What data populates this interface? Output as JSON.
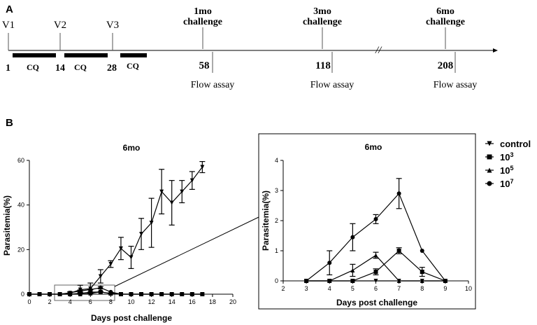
{
  "panels": {
    "a": "A",
    "b": "B"
  },
  "timeline": {
    "vaccinations": [
      "V1",
      "V2",
      "V3"
    ],
    "days": [
      "1",
      "14",
      "28"
    ],
    "cq": [
      "CQ",
      "CQ",
      "CQ"
    ],
    "challenges": [
      {
        "label_top": "1mo",
        "label_bottom": "challenge",
        "day": "58",
        "assay": "Flow assay"
      },
      {
        "label_top": "3mo",
        "label_bottom": "challenge",
        "day": "118",
        "assay": "Flow assay"
      },
      {
        "label_top": "6mo",
        "label_bottom": "challenge",
        "day": "208",
        "assay": "Flow assay"
      }
    ],
    "break_mark": "//"
  },
  "chart_data": [
    {
      "type": "line",
      "title": "6mo",
      "xlabel": "Days post challenge",
      "ylabel": "Parasitemia(%)",
      "xlim": [
        0,
        20
      ],
      "ylim": [
        0,
        60
      ],
      "xticks": [
        "0",
        "2",
        "4",
        "6",
        "8",
        "10",
        "12",
        "14",
        "16",
        "18",
        "20"
      ],
      "yticks": [
        "0",
        "20",
        "40",
        "60"
      ],
      "series": [
        {
          "name": "control",
          "marker": "triangle-down",
          "x": [
            3,
            4,
            5,
            6,
            7,
            8,
            9,
            10,
            11,
            12,
            13,
            14,
            15,
            16,
            17
          ],
          "y": [
            0,
            0.5,
            2,
            2.5,
            8,
            13.5,
            20.5,
            16.5,
            27,
            32,
            46,
            41,
            46,
            51,
            57
          ],
          "err": [
            0,
            0.5,
            2,
            2.5,
            3,
            1.5,
            5,
            5,
            7,
            11,
            10,
            10,
            5,
            4,
            2.5
          ]
        },
        {
          "name": "10^3",
          "marker": "square",
          "x": [
            0,
            1,
            2,
            3,
            4,
            5,
            6,
            7,
            8,
            9,
            10,
            11,
            12,
            13,
            14,
            15,
            16,
            17
          ],
          "y": [
            0,
            0,
            0,
            0,
            0,
            0.4,
            0.9,
            1,
            0.3,
            0,
            0,
            0,
            0,
            0,
            0,
            0,
            0,
            0
          ],
          "err": [
            0,
            0,
            0,
            0,
            0,
            0.2,
            0.1,
            0.1,
            0.1,
            0,
            0,
            0,
            0,
            0,
            0,
            0,
            0,
            0
          ]
        },
        {
          "name": "10^5",
          "marker": "triangle-up",
          "x": [
            0,
            1,
            2,
            3,
            4,
            5,
            6,
            7,
            8,
            9,
            10,
            11,
            12,
            13,
            14,
            15,
            16,
            17
          ],
          "y": [
            0,
            0,
            0,
            0,
            0,
            0,
            0.35,
            1,
            0.35,
            0,
            0,
            0,
            0,
            0,
            0,
            0,
            0,
            0
          ],
          "err": [
            0,
            0,
            0,
            0,
            0,
            0,
            0.1,
            0.1,
            0.15,
            0,
            0,
            0,
            0,
            0,
            0,
            0,
            0,
            0
          ]
        },
        {
          "name": "10^7",
          "marker": "circle",
          "x": [
            0,
            1,
            2,
            3,
            4,
            5,
            6,
            7,
            8,
            9,
            10,
            11,
            12,
            13,
            14,
            15,
            16,
            17
          ],
          "y": [
            0,
            0,
            0,
            0,
            0.6,
            1.45,
            2.05,
            2.9,
            1,
            0,
            0,
            0,
            0,
            0,
            0,
            0,
            0,
            0
          ],
          "err": [
            0,
            0,
            0,
            0,
            0.4,
            0.45,
            0.15,
            0.5,
            0,
            0,
            0,
            0,
            0,
            0,
            0,
            0,
            0,
            0
          ]
        }
      ]
    },
    {
      "type": "line",
      "title": "6mo",
      "xlabel": "Days post challenge",
      "ylabel": "Parasitemia(%)",
      "xlim": [
        2,
        10
      ],
      "ylim": [
        0,
        4
      ],
      "xticks": [
        "2",
        "3",
        "4",
        "5",
        "6",
        "7",
        "8",
        "9",
        "10"
      ],
      "yticks": [
        "0",
        "1",
        "2",
        "3",
        "4"
      ],
      "series": [
        {
          "name": "control",
          "marker": "triangle-down",
          "x": [
            3,
            4,
            5,
            6,
            7,
            8,
            9
          ],
          "y": [
            0,
            0,
            0,
            0,
            0,
            0,
            0
          ],
          "err": [
            0,
            0,
            0,
            0,
            0,
            0,
            0
          ]
        },
        {
          "name": "10^3",
          "marker": "square",
          "x": [
            3,
            4,
            5,
            6,
            7,
            8,
            9
          ],
          "y": [
            0,
            0,
            0,
            0.3,
            1,
            0.3,
            0
          ],
          "err": [
            0,
            0,
            0,
            0.1,
            0.1,
            0.15,
            0
          ]
        },
        {
          "name": "10^5",
          "marker": "triangle-up",
          "x": [
            3,
            4,
            5,
            6,
            7,
            8,
            9
          ],
          "y": [
            0,
            0,
            0.35,
            0.85,
            0,
            0,
            0
          ],
          "err": [
            0,
            0,
            0.2,
            0.1,
            0,
            0,
            0
          ]
        },
        {
          "name": "10^7",
          "marker": "circle",
          "x": [
            3,
            4,
            5,
            6,
            7,
            8,
            9
          ],
          "y": [
            0,
            0.6,
            1.45,
            2.05,
            2.9,
            1,
            0
          ],
          "err": [
            0,
            0.4,
            0.45,
            0.15,
            0.5,
            0,
            0
          ]
        }
      ]
    }
  ],
  "legend": [
    {
      "base": "control",
      "sup": "",
      "marker": "triangle-down"
    },
    {
      "base": "10",
      "sup": "3",
      "marker": "square"
    },
    {
      "base": "10",
      "sup": "5",
      "marker": "triangle-up"
    },
    {
      "base": "10",
      "sup": "7",
      "marker": "circle"
    }
  ]
}
